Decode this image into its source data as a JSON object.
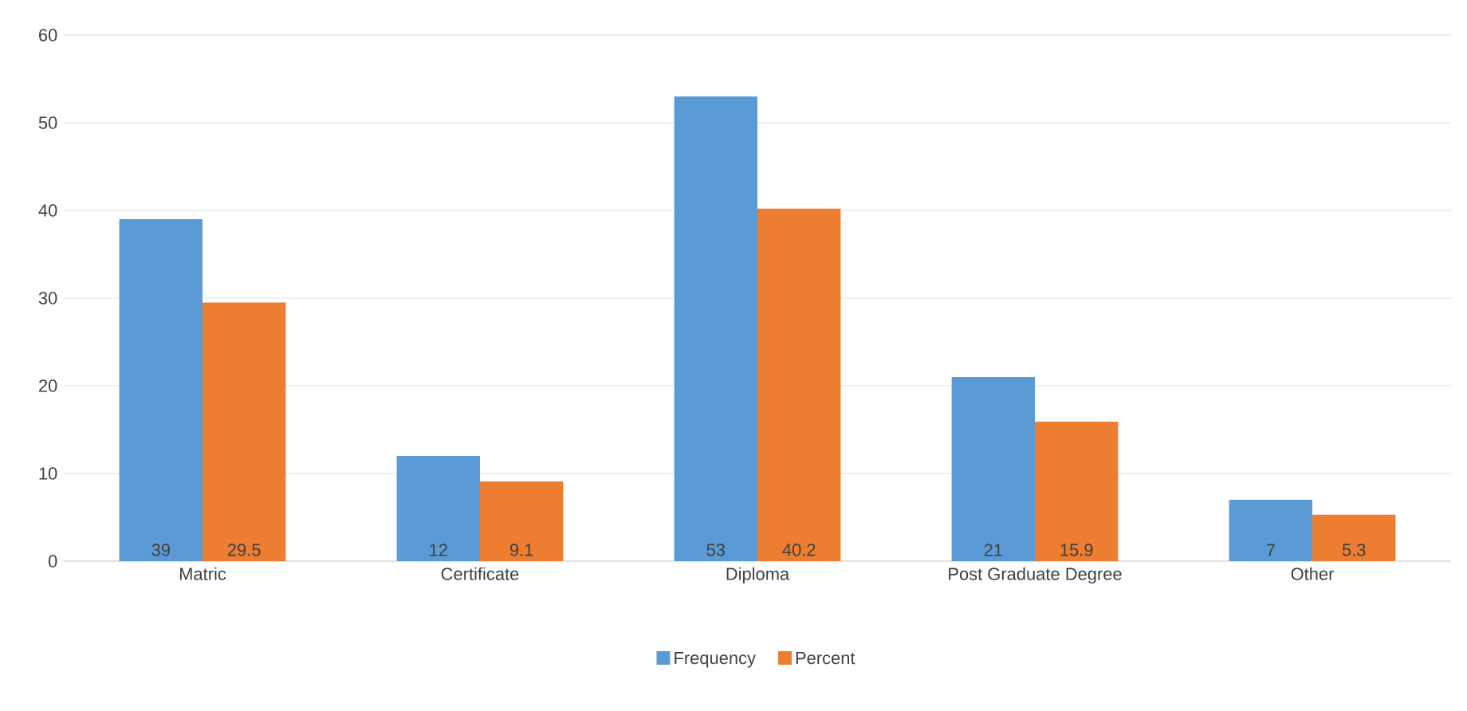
{
  "chart_data": {
    "type": "bar",
    "categories": [
      "Matric",
      "Certificate",
      "Diploma",
      "Post Graduate Degree",
      "Other"
    ],
    "series": [
      {
        "name": "Frequency",
        "color": "#5b9bd5",
        "values": [
          39,
          12,
          53,
          21,
          7
        ]
      },
      {
        "name": "Percent",
        "color": "#ed7d31",
        "values": [
          29.5,
          9.1,
          40.2,
          15.9,
          5.3
        ]
      }
    ],
    "ylim": [
      0,
      60
    ],
    "yticks": [
      0,
      10,
      20,
      30,
      40,
      50,
      60
    ],
    "grid": "y",
    "legend": "bottom",
    "data_labels": true
  }
}
